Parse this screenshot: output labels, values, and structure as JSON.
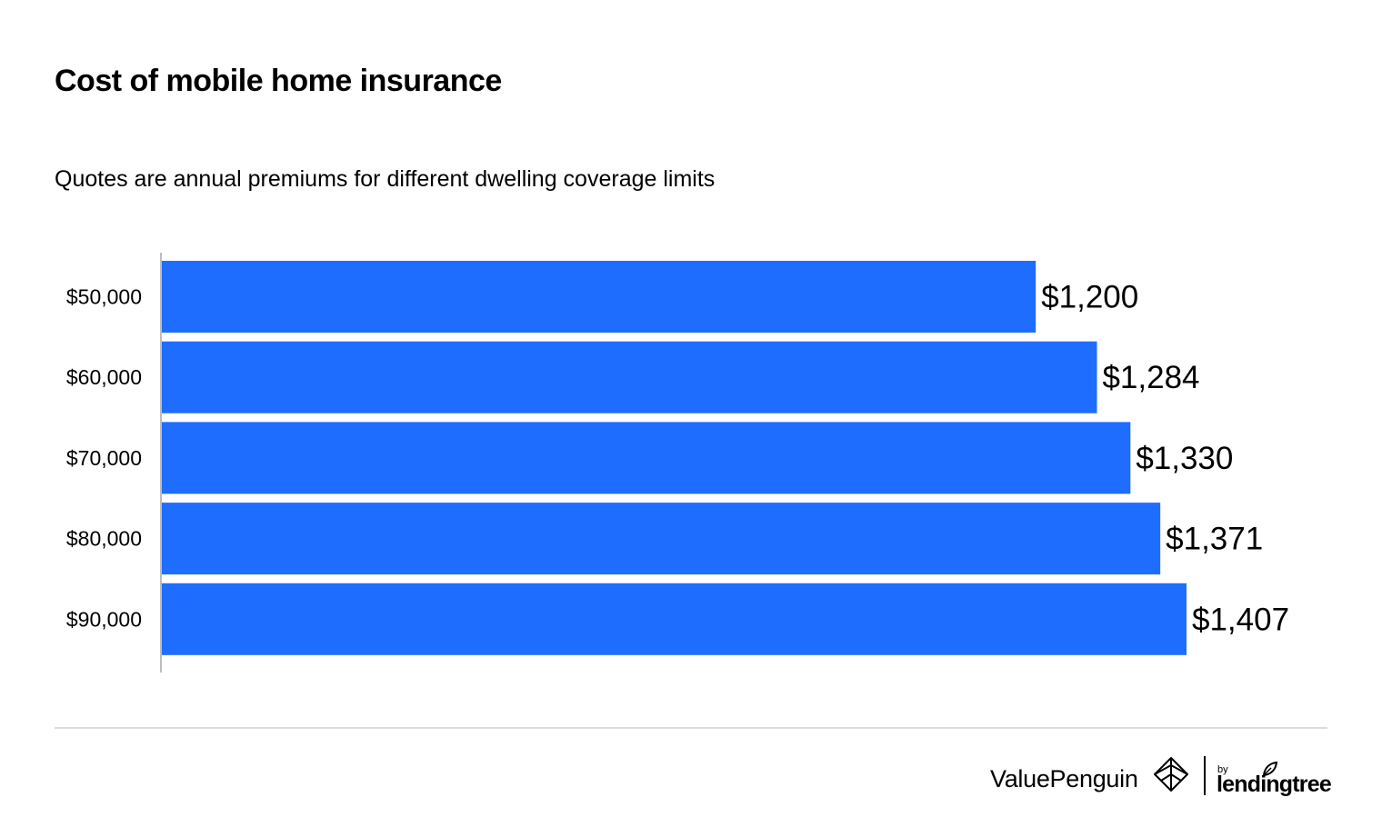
{
  "header": {
    "title": "Cost of mobile home insurance",
    "subtitle": "Quotes are annual premiums for different dwelling coverage limits"
  },
  "chart_data": {
    "type": "bar",
    "orientation": "horizontal",
    "categories": [
      "$50,000",
      "$60,000",
      "$70,000",
      "$80,000",
      "$90,000"
    ],
    "values": [
      1200,
      1284,
      1330,
      1371,
      1407
    ],
    "data_labels": [
      "$1,200",
      "$1,284",
      "$1,330",
      "$1,371",
      "$1,407"
    ],
    "title": "Cost of mobile home insurance",
    "subtitle": "Quotes are annual premiums for different dwelling coverage limits",
    "xlabel": "",
    "ylabel": "",
    "xlim": [
      0,
      1500
    ],
    "grid": false,
    "legend": "none",
    "bar_color": "#1f6dff"
  },
  "footer": {
    "brand": "ValuePenguin",
    "by_text": "by",
    "partner": "lendingtree",
    "logo_icon": "penguin-diamond-icon",
    "leaf_icon": "leaf-icon"
  },
  "colors": {
    "bar": "#1f6dff",
    "text": "#000000",
    "axis": "#bdbdbd",
    "rule": "#dcdcdc"
  }
}
